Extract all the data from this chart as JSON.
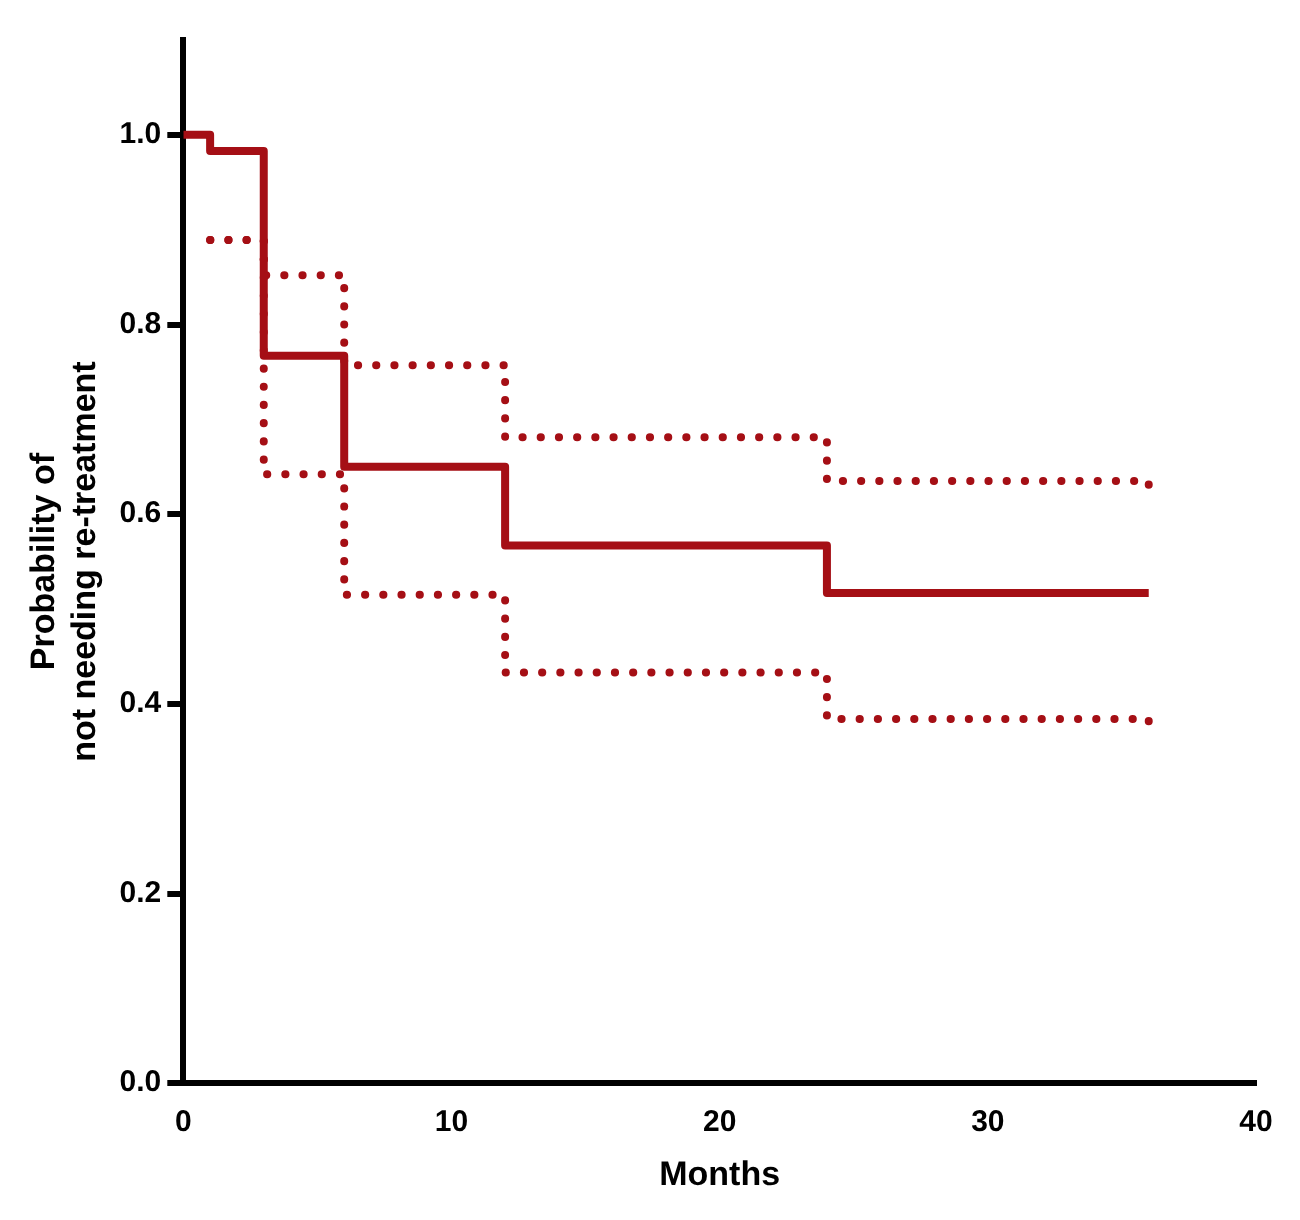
{
  "chart_data": {
    "type": "step",
    "xlabel": "Months",
    "ylabel": "Probability of\nnot needing re-treatment",
    "xlim": [
      0,
      40
    ],
    "xticks": [
      0,
      10,
      20,
      30,
      40
    ],
    "ylim": [
      0,
      1.1
    ],
    "yticks": [
      {
        "value": 0,
        "label": "0.0"
      },
      0.2,
      0.4,
      0.6,
      0.8,
      {
        "value": 1,
        "label": "1.0"
      }
    ],
    "grid": false,
    "legend": false,
    "marker": "none",
    "series": [
      {
        "color": "#a50f15",
        "line_style": "solid",
        "x": [
          0,
          1,
          3,
          6,
          12,
          24,
          36
        ],
        "values": [
          1,
          0.983,
          0.767,
          0.65,
          0.567,
          0.517,
          0.517
        ]
      },
      {
        "color": "#a50f15",
        "line_style": "dotted",
        "x": [
          1,
          3,
          6,
          12,
          24,
          36
        ],
        "values": [
          0.889,
          0.852,
          0.757,
          0.681,
          0.635,
          0.62
        ]
      },
      {
        "color": "#a50f15",
        "line_style": "dotted",
        "x": [
          1,
          3,
          6,
          12,
          24,
          36
        ],
        "values": [
          0.889,
          0.642,
          0.515,
          0.433,
          0.384,
          0.377
        ]
      }
    ]
  }
}
